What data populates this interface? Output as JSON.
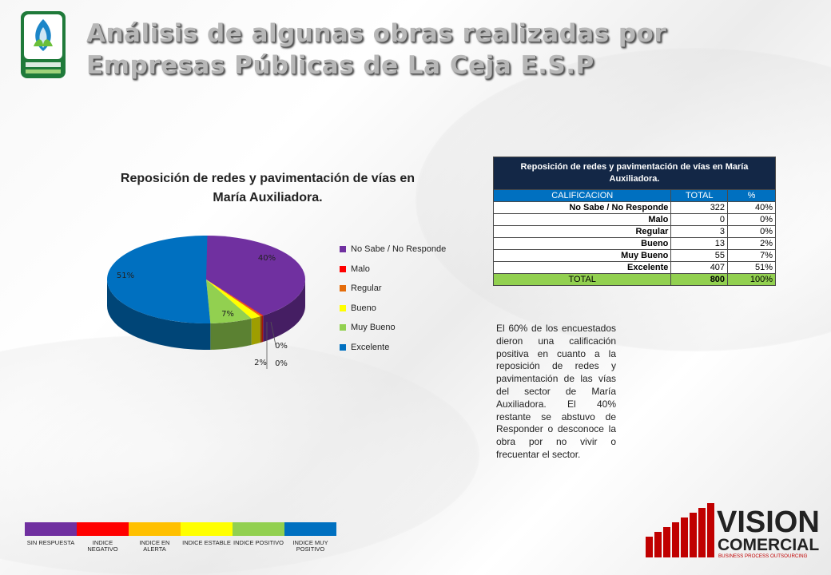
{
  "header": {
    "title_line1": "Análisis de algunas obras realizadas por",
    "title_line2": "Empresas Públicas de La Ceja E.S.P"
  },
  "logos": {
    "top_left": "empresas-publicas-la-ceja-logo",
    "bottom_right_word1": "VISION",
    "bottom_right_word2": "COMERCIAL",
    "bottom_right_tagline": "BUSINESS PROCESS OUTSOURCING"
  },
  "chart_data": {
    "type": "pie",
    "title_line1": "Reposición de redes y pavimentación de vías en",
    "title_line2": "María Auxiliadora.",
    "legend_position": "right",
    "categories": [
      "No Sabe / No Responde",
      "Malo",
      "Regular",
      "Bueno",
      "Muy Bueno",
      "Excelente"
    ],
    "values": [
      322,
      0,
      3,
      13,
      55,
      407
    ],
    "labels": [
      "40%",
      "0%",
      "0%",
      "2%",
      "7%",
      "51%"
    ],
    "colors": [
      "#7030a0",
      "#ff0000",
      "#e46c0a",
      "#ffff00",
      "#92d050",
      "#0070c0"
    ],
    "style": "3d"
  },
  "table": {
    "title": "Reposición de redes y pavimentación de vías en María Auxiliadora.",
    "headers": [
      "CALIFICACION",
      "TOTAL",
      "%"
    ],
    "rows": [
      {
        "label": "No Sabe / No Responde",
        "total": "322",
        "pct": "40%"
      },
      {
        "label": "Malo",
        "total": "0",
        "pct": "0%"
      },
      {
        "label": "Regular",
        "total": "3",
        "pct": "0%"
      },
      {
        "label": "Bueno",
        "total": "13",
        "pct": "2%"
      },
      {
        "label": "Muy Bueno",
        "total": "55",
        "pct": "7%"
      },
      {
        "label": "Excelente",
        "total": "407",
        "pct": "51%"
      }
    ],
    "total_row": {
      "label": "TOTAL",
      "total": "800",
      "pct": "100%"
    }
  },
  "note": "El 60% de los encuestados dieron una calificación positiva en cuanto a la reposición de redes y pavimentación de las vías del sector de María Auxiliadora. El 40% restante se abstuvo de Responder o desconoce la obra por no vivir o frecuentar el sector.",
  "scale": [
    {
      "label": "SIN RESPUESTA",
      "color": "#7030a0"
    },
    {
      "label": "INDICE NEGATIVO",
      "color": "#ff0000"
    },
    {
      "label": "INDICE EN ALERTA",
      "color": "#ffc000"
    },
    {
      "label": "INDICE ESTABLE",
      "color": "#ffff00"
    },
    {
      "label": "INDICE POSITIVO",
      "color": "#92d050"
    },
    {
      "label": "INDICE MUY POSITIVO",
      "color": "#0070c0"
    }
  ]
}
